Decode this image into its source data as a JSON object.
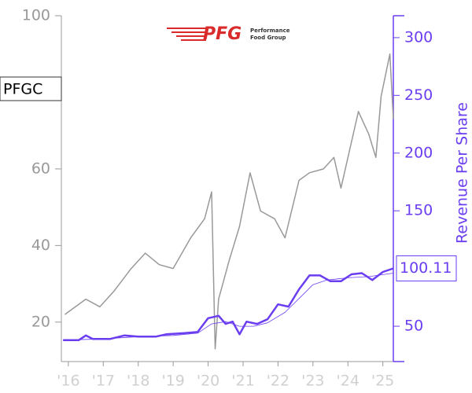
{
  "chart_data": {
    "type": "line",
    "logo": {
      "mark": "PFG",
      "line1": "Performance",
      "line2": "Food Group"
    },
    "ticker": "PFGC",
    "last_value": 100.11,
    "y2label": "Revenue Per Share",
    "xlim": [
      2015.8,
      2025.3
    ],
    "xticks": [
      {
        "value": 2016,
        "label": "'16"
      },
      {
        "value": 2017,
        "label": "'17"
      },
      {
        "value": 2018,
        "label": "'18"
      },
      {
        "value": 2019,
        "label": "'19"
      },
      {
        "value": 2020,
        "label": "'20"
      },
      {
        "value": 2021,
        "label": "'21"
      },
      {
        "value": 2022,
        "label": "'22"
      },
      {
        "value": 2023,
        "label": "'23"
      },
      {
        "value": 2024,
        "label": "'24"
      },
      {
        "value": 2025,
        "label": "'25"
      }
    ],
    "ylim": [
      9.7,
      100
    ],
    "yticks": [
      20,
      40,
      60,
      100
    ],
    "y2lim": [
      19.4,
      319
    ],
    "y2ticks": [
      50,
      150,
      200,
      250,
      300
    ],
    "axis_color": "#999999",
    "y2_color": "#6a3df0",
    "series": [
      {
        "axis": "y",
        "color": "#999999",
        "line_width": 1.5,
        "x": [
          2015.9,
          2016.5,
          2016.9,
          2017.3,
          2017.8,
          2018.2,
          2018.6,
          2019.0,
          2019.5,
          2019.9,
          2020.1,
          2020.2,
          2020.3,
          2020.6,
          2020.9,
          2021.2,
          2021.5,
          2021.9,
          2022.2,
          2022.6,
          2022.9,
          2023.3,
          2023.6,
          2023.8,
          2024.0,
          2024.3,
          2024.6,
          2024.8,
          2024.95,
          2025.2,
          2025.3
        ],
        "values": [
          22,
          26,
          24,
          28,
          34,
          38,
          35,
          34,
          42,
          47,
          54,
          13,
          26,
          36,
          45,
          59,
          49,
          47,
          42,
          57,
          59,
          60,
          63,
          55,
          63,
          75,
          69,
          63,
          79,
          90,
          73
        ]
      },
      {
        "axis": "y2",
        "color": "#6a3df0",
        "line_width": 2.5,
        "x": [
          2015.85,
          2016.3,
          2016.5,
          2016.7,
          2017.2,
          2017.6,
          2018.0,
          2018.5,
          2018.8,
          2019.3,
          2019.7,
          2020.0,
          2020.3,
          2020.5,
          2020.7,
          2020.9,
          2021.1,
          2021.4,
          2021.7,
          2022.0,
          2022.3,
          2022.6,
          2022.9,
          2023.2,
          2023.5,
          2023.8,
          2024.1,
          2024.4,
          2024.7,
          2025.0,
          2025.3
        ],
        "values": [
          38,
          38,
          42,
          39,
          39,
          42,
          41,
          41,
          43,
          44,
          45,
          57,
          59,
          52,
          54,
          43,
          54,
          52,
          56,
          69,
          67,
          82,
          94,
          94,
          89,
          89,
          95,
          96,
          90,
          97,
          100.11
        ]
      },
      {
        "axis": "y2",
        "color": "#6a3df0",
        "line_width": 0.8,
        "x": [
          2015.85,
          2017.0,
          2018.0,
          2019.0,
          2019.7,
          2020.1,
          2020.5,
          2020.9,
          2021.3,
          2021.7,
          2022.2,
          2022.6,
          2023.0,
          2023.4,
          2024.0,
          2024.6,
          2025.3
        ],
        "values": [
          38,
          39,
          41,
          42,
          44,
          52,
          54,
          50,
          50,
          53,
          62,
          74,
          86,
          90,
          92,
          93,
          96
        ]
      }
    ]
  }
}
